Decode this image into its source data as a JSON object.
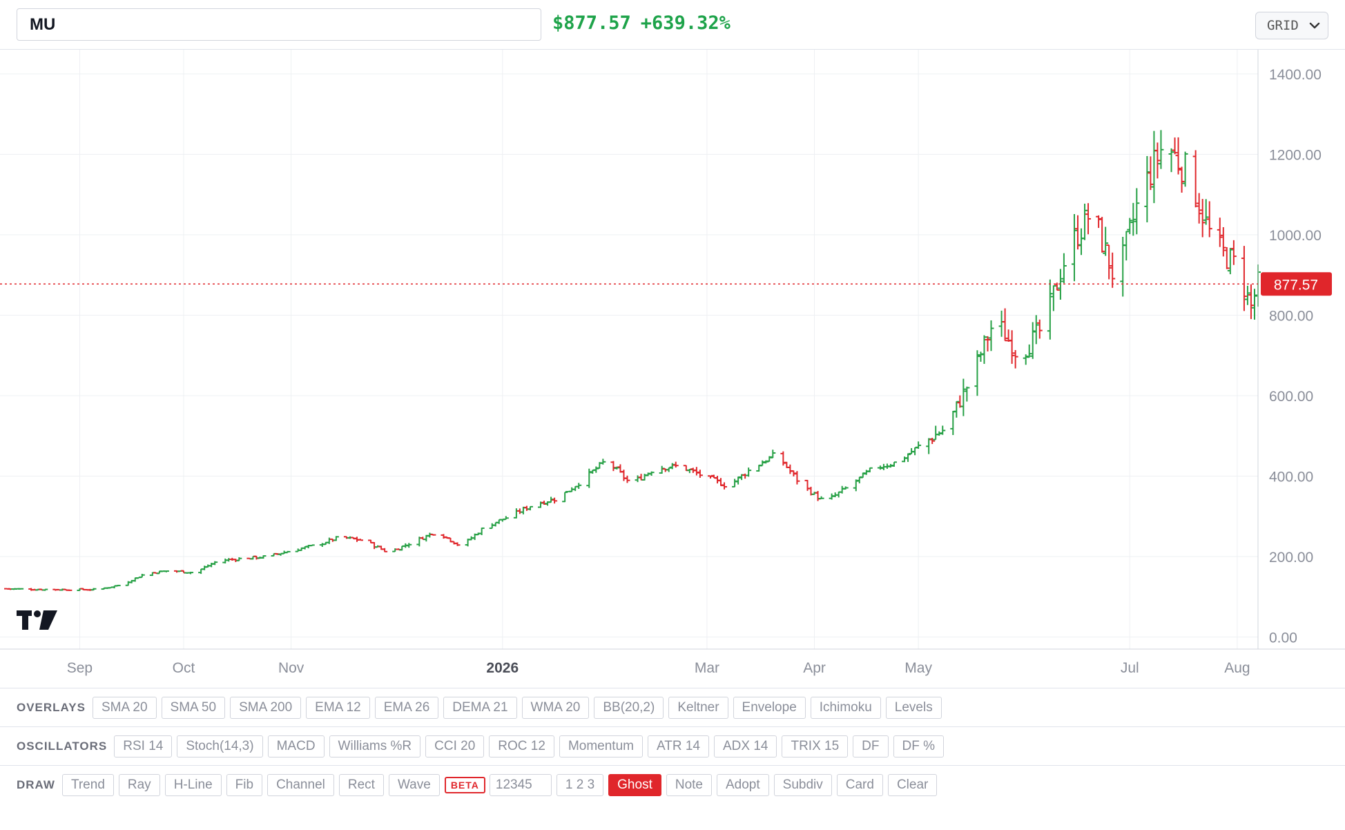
{
  "header": {
    "ticker": "MU",
    "price": "$877.57",
    "change": "+639.32%",
    "layout_label": "GRID"
  },
  "colors": {
    "up": "#26a045",
    "down": "#e0262b",
    "grid": "#eef0f3",
    "axis_text": "#8a8e99",
    "price_line": "#e0262b"
  },
  "chart_data": {
    "type": "ohlc",
    "title": "",
    "ylim": [
      -30,
      1460
    ],
    "y_ticks": [
      0,
      200,
      400,
      600,
      800,
      1000,
      1200,
      1400
    ],
    "y_tick_labels": [
      "0.00",
      "200.00",
      "400.00",
      "600.00",
      "800.00",
      "1000.00",
      "1200.00",
      "1400.00"
    ],
    "x_ticks": [
      {
        "label": "Sep",
        "date": "2025-09-01",
        "bold": false
      },
      {
        "label": "Oct",
        "date": "2025-10-01",
        "bold": false
      },
      {
        "label": "Nov",
        "date": "2025-11-01",
        "bold": false
      },
      {
        "label": "2026",
        "date": "2026-01-01",
        "bold": true
      },
      {
        "label": "Mar",
        "date": "2026-03-01",
        "bold": false
      },
      {
        "label": "Apr",
        "date": "2026-04-01",
        "bold": false
      },
      {
        "label": "May",
        "date": "2026-05-01",
        "bold": false
      },
      {
        "label": "Jul",
        "date": "2026-07-01",
        "bold": false
      },
      {
        "label": "Aug",
        "date": "2026-08-01",
        "bold": false
      }
    ],
    "date_range": [
      "2025-08-09",
      "2026-08-07"
    ],
    "last_price": 877.57,
    "last_price_label": "877.57",
    "grid": true,
    "series": [
      {
        "date": "2025-08-09",
        "close": 120
      },
      {
        "date": "2025-08-23",
        "close": 118
      },
      {
        "date": "2025-09-06",
        "close": 118
      },
      {
        "date": "2025-09-13",
        "close": 130
      },
      {
        "date": "2025-09-20",
        "close": 158
      },
      {
        "date": "2025-09-27",
        "close": 165
      },
      {
        "date": "2025-10-04",
        "close": 160
      },
      {
        "date": "2025-10-11",
        "close": 190
      },
      {
        "date": "2025-10-18",
        "close": 195
      },
      {
        "date": "2025-10-25",
        "close": 200
      },
      {
        "date": "2025-11-01",
        "close": 215
      },
      {
        "date": "2025-11-08",
        "close": 228
      },
      {
        "date": "2025-11-15",
        "close": 248
      },
      {
        "date": "2025-11-22",
        "close": 240
      },
      {
        "date": "2025-11-29",
        "close": 210
      },
      {
        "date": "2025-12-06",
        "close": 236
      },
      {
        "date": "2025-12-13",
        "close": 262
      },
      {
        "date": "2025-12-20",
        "close": 225
      },
      {
        "date": "2025-12-27",
        "close": 275
      },
      {
        "date": "2026-01-03",
        "close": 300
      },
      {
        "date": "2026-01-10",
        "close": 330
      },
      {
        "date": "2026-01-17",
        "close": 345
      },
      {
        "date": "2026-01-24",
        "close": 390
      },
      {
        "date": "2026-01-31",
        "close": 440
      },
      {
        "date": "2026-02-07",
        "close": 380
      },
      {
        "date": "2026-02-14",
        "close": 420
      },
      {
        "date": "2026-02-21",
        "close": 425
      },
      {
        "date": "2026-02-28",
        "close": 400
      },
      {
        "date": "2026-03-07",
        "close": 375
      },
      {
        "date": "2026-03-14",
        "close": 420
      },
      {
        "date": "2026-03-21",
        "close": 455
      },
      {
        "date": "2026-03-28",
        "close": 380
      },
      {
        "date": "2026-04-04",
        "close": 335
      },
      {
        "date": "2026-04-11",
        "close": 375
      },
      {
        "date": "2026-04-18",
        "close": 420
      },
      {
        "date": "2026-04-25",
        "close": 435
      },
      {
        "date": "2026-05-02",
        "close": 480
      },
      {
        "date": "2026-05-09",
        "close": 520
      },
      {
        "date": "2026-05-16",
        "close": 640
      },
      {
        "date": "2026-05-23",
        "close": 790
      },
      {
        "date": "2026-05-30",
        "close": 700
      },
      {
        "date": "2026-06-06",
        "close": 770
      },
      {
        "date": "2026-06-13",
        "close": 960
      },
      {
        "date": "2026-06-20",
        "close": 1060
      },
      {
        "date": "2026-06-27",
        "close": 880
      },
      {
        "date": "2026-07-04",
        "close": 1100
      },
      {
        "date": "2026-07-11",
        "close": 1230
      },
      {
        "date": "2026-07-18",
        "close": 1150
      },
      {
        "date": "2026-07-25",
        "close": 980
      },
      {
        "date": "2026-08-01",
        "close": 920
      },
      {
        "date": "2026-08-05",
        "close": 820
      },
      {
        "date": "2026-08-07",
        "close": 877.57
      }
    ]
  },
  "overlays": {
    "label": "OVERLAYS",
    "items": [
      "SMA 20",
      "SMA 50",
      "SMA 200",
      "EMA 12",
      "EMA 26",
      "DEMA 21",
      "WMA 20",
      "BB(20,2)",
      "Keltner",
      "Envelope",
      "Ichimoku",
      "Levels"
    ]
  },
  "oscillators": {
    "label": "OSCILLATORS",
    "items": [
      "RSI 14",
      "Stoch(14,3)",
      "MACD",
      "Williams %R",
      "CCI 20",
      "ROC 12",
      "Momentum",
      "ATR 14",
      "ADX 14",
      "TRIX 15",
      "DF",
      "DF %"
    ]
  },
  "draw": {
    "label": "DRAW",
    "items_a": [
      "Trend",
      "Ray",
      "H-Line",
      "Fib",
      "Channel",
      "Rect",
      "Wave"
    ],
    "beta": "BETA",
    "input_value": "12345",
    "items_b": [
      "1 2 3",
      "Ghost",
      "Note",
      "Adopt",
      "Subdiv",
      "Card",
      "Clear"
    ],
    "active": "Ghost"
  }
}
